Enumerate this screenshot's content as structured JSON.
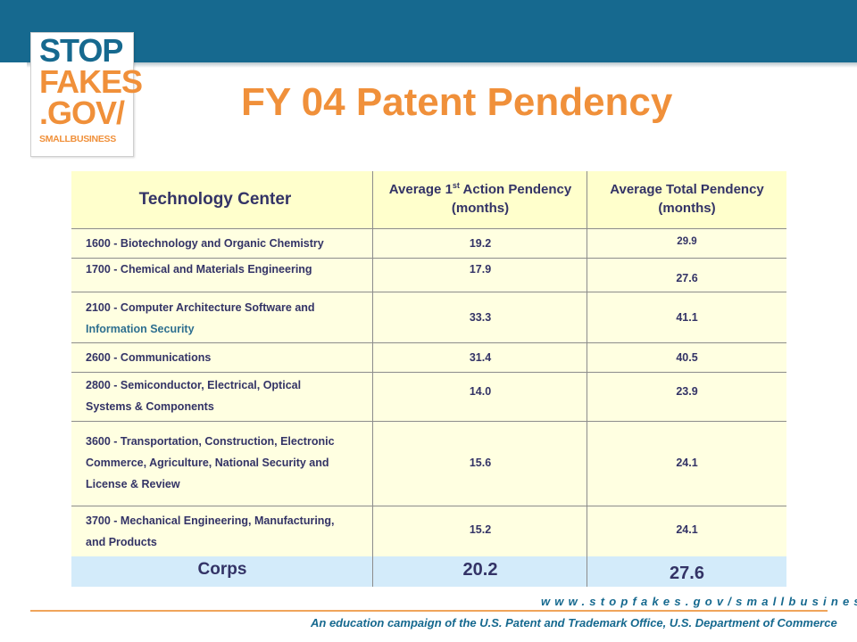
{
  "logo": {
    "line1": "STOP",
    "line2": "FAKES",
    "line3": ".GOV/",
    "line4": "SMALLBUSINESS"
  },
  "title": "FY 04 Patent Pendency",
  "table": {
    "headers": {
      "tech_center": "Technology Center",
      "first_action_main": "Average 1",
      "first_action_sup": "st",
      "first_action_rest": " Action Pendency",
      "first_action_units": "(months)",
      "total_main": "Average Total Pendency",
      "total_units": "(months)"
    },
    "rows": [
      {
        "center": "1600 - Biotechnology and Organic Chemistry",
        "first_action": "19.2",
        "total": "29.9"
      },
      {
        "center": "1700 - Chemical and Materials Engineering",
        "first_action": "17.9",
        "total": "27.6"
      },
      {
        "center_line1": "2100 - Computer Architecture Software and",
        "center_line2": "Information Security",
        "first_action": "33.3",
        "total": "41.1"
      },
      {
        "center": "2600 - Communications",
        "first_action": "31.4",
        "total": "40.5"
      },
      {
        "center_line1": "2800 - Semiconductor, Electrical, Optical",
        "center_line2": "Systems & Components",
        "first_action": "14.0",
        "total": "23.9"
      },
      {
        "center_line1": "3600 - Transportation, Construction, Electronic",
        "center_line2": "Commerce, Agriculture, National Security and",
        "center_line3": "License & Review",
        "first_action": "15.6",
        "total": "24.1"
      },
      {
        "center_line1": "3700 - Mechanical Engineering, Manufacturing,",
        "center_line2": "and Products",
        "first_action": "15.2",
        "total": "24.1"
      }
    ],
    "corps": {
      "label": "Corps",
      "first_action": "20.2",
      "total": "27.6"
    }
  },
  "footer": {
    "url": "www.stopfakes.gov/smallbusiness",
    "note": "An education campaign of the U.S. Patent and Trademark Office, U.S. Department of Commerce"
  },
  "colors": {
    "banner": "#16698f",
    "accent_orange": "#f0903a",
    "table_bg": "#ffffe1",
    "corps_bg": "#d3ebfa",
    "text": "#333366"
  }
}
